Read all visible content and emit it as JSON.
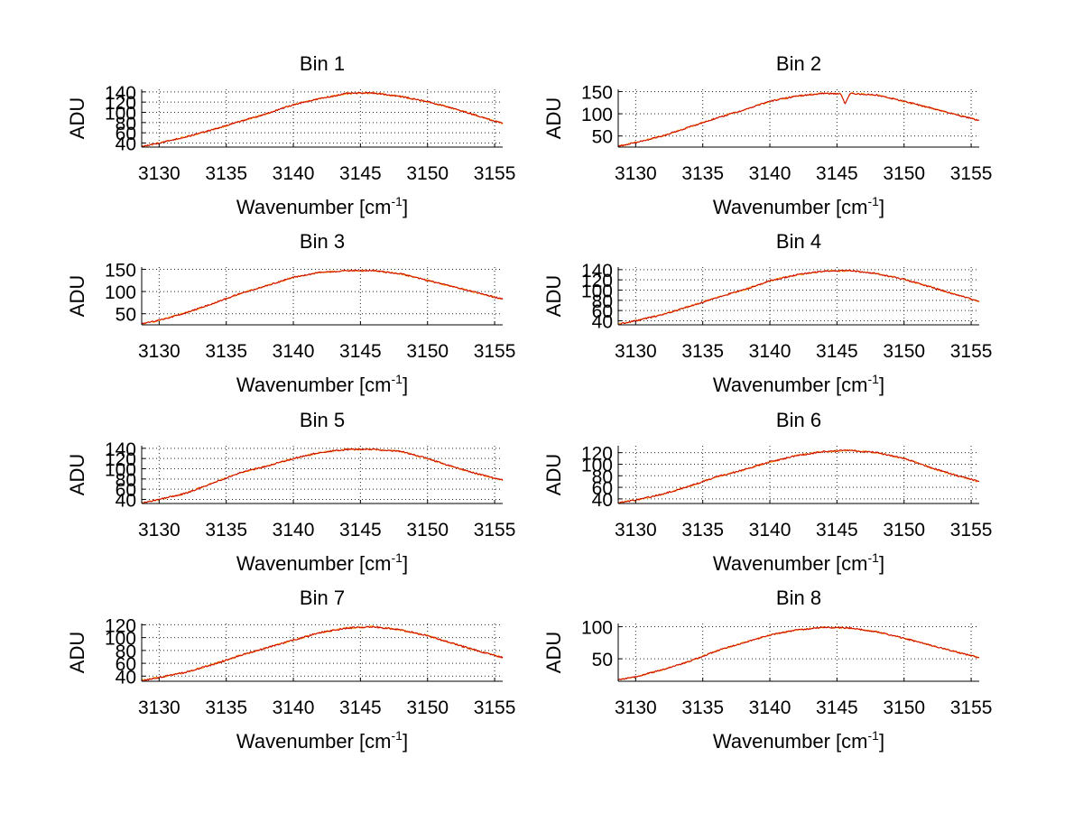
{
  "chart_data": [
    {
      "type": "line",
      "title": "Bin 1",
      "xlabel": "Wavenumber [cm",
      "xlabel_sup": "-1",
      "xlabel_suffix": "]",
      "ylabel": "ADU",
      "xlim": [
        3128.7,
        3155.6
      ],
      "ylim": [
        32,
        145
      ],
      "xticks": [
        3130,
        3135,
        3140,
        3145,
        3150,
        3155
      ],
      "yticks": [
        40,
        60,
        80,
        100,
        120,
        140
      ],
      "ytick_labels": [
        "40",
        "60",
        "80",
        "100",
        "120",
        "140"
      ],
      "noise": 1.6,
      "series": [
        {
          "color": "#ff9900",
          "x": [
            3128.7,
            3130,
            3132,
            3134,
            3136,
            3138,
            3140,
            3142,
            3144,
            3146,
            3148,
            3150,
            3152,
            3154,
            3155.6
          ],
          "y": [
            33,
            40,
            52,
            66,
            82,
            97,
            115,
            127,
            137,
            138,
            131,
            121,
            107,
            91,
            78
          ]
        },
        {
          "color": "#cc0000",
          "x": [
            3128.7,
            3130,
            3132,
            3134,
            3136,
            3138,
            3140,
            3142,
            3144,
            3146,
            3148,
            3150,
            3152,
            3154,
            3155.6
          ],
          "y": [
            33,
            40,
            52,
            66,
            82,
            97,
            115,
            127,
            137,
            138,
            131,
            121,
            107,
            91,
            78
          ]
        }
      ]
    },
    {
      "type": "line",
      "title": "Bin 2",
      "xlabel": "Wavenumber [cm",
      "xlabel_sup": "-1",
      "xlabel_suffix": "]",
      "ylabel": "ADU",
      "xlim": [
        3128.7,
        3155.6
      ],
      "ylim": [
        25,
        155
      ],
      "xticks": [
        3130,
        3135,
        3140,
        3145,
        3150,
        3155
      ],
      "yticks": [
        50,
        100,
        150
      ],
      "ytick_labels": [
        "50",
        "100",
        "150"
      ],
      "noise": 1.8,
      "series": [
        {
          "color": "#ff9900",
          "x": [
            3128.7,
            3130,
            3132,
            3134,
            3136,
            3138,
            3140,
            3142,
            3144,
            3145.3,
            3145.6,
            3146,
            3148,
            3150,
            3152,
            3154,
            3155.6
          ],
          "y": [
            27,
            35,
            50,
            70,
            90,
            108,
            128,
            140,
            146,
            145,
            122,
            146,
            142,
            128,
            113,
            97,
            85
          ]
        },
        {
          "color": "#cc0000",
          "x": [
            3128.7,
            3130,
            3132,
            3134,
            3136,
            3138,
            3140,
            3142,
            3144,
            3145.3,
            3145.6,
            3146,
            3148,
            3150,
            3152,
            3154,
            3155.6
          ],
          "y": [
            27,
            35,
            50,
            70,
            90,
            108,
            128,
            140,
            146,
            145,
            122,
            146,
            142,
            128,
            113,
            97,
            85
          ]
        }
      ]
    },
    {
      "type": "line",
      "title": "Bin 3",
      "xlabel": "Wavenumber [cm",
      "xlabel_sup": "-1",
      "xlabel_suffix": "]",
      "ylabel": "ADU",
      "xlim": [
        3128.7,
        3155.6
      ],
      "ylim": [
        25,
        155
      ],
      "xticks": [
        3130,
        3135,
        3140,
        3145,
        3150,
        3155
      ],
      "yticks": [
        50,
        100,
        150
      ],
      "ytick_labels": [
        "50",
        "100",
        "150"
      ],
      "noise": 1.8,
      "series": [
        {
          "color": "#ff9900",
          "x": [
            3128.7,
            3130,
            3132,
            3134,
            3136,
            3138,
            3140,
            3142,
            3144,
            3146,
            3148,
            3150,
            3152,
            3154,
            3155.6
          ],
          "y": [
            27,
            35,
            52,
            73,
            95,
            113,
            132,
            143,
            147,
            147,
            140,
            125,
            110,
            95,
            83
          ]
        },
        {
          "color": "#cc0000",
          "x": [
            3128.7,
            3130,
            3132,
            3134,
            3136,
            3138,
            3140,
            3142,
            3144,
            3146,
            3148,
            3150,
            3152,
            3154,
            3155.6
          ],
          "y": [
            27,
            35,
            52,
            73,
            95,
            113,
            132,
            143,
            147,
            147,
            140,
            125,
            110,
            95,
            83
          ]
        }
      ]
    },
    {
      "type": "line",
      "title": "Bin 4",
      "xlabel": "Wavenumber [cm",
      "xlabel_sup": "-1",
      "xlabel_suffix": "]",
      "ylabel": "ADU",
      "xlim": [
        3128.7,
        3155.6
      ],
      "ylim": [
        32,
        145
      ],
      "xticks": [
        3130,
        3135,
        3140,
        3145,
        3150,
        3155
      ],
      "yticks": [
        40,
        60,
        80,
        100,
        120,
        140
      ],
      "ytick_labels": [
        "40",
        "60",
        "80",
        "100",
        "120",
        "140"
      ],
      "noise": 1.6,
      "series": [
        {
          "color": "#ff9900",
          "x": [
            3128.7,
            3130,
            3132,
            3134,
            3136,
            3138,
            3140,
            3142,
            3144,
            3146,
            3148,
            3150,
            3152,
            3154,
            3155.6
          ],
          "y": [
            33,
            40,
            52,
            68,
            85,
            100,
            118,
            130,
            137,
            138,
            132,
            121,
            106,
            90,
            78
          ]
        },
        {
          "color": "#cc0000",
          "x": [
            3128.7,
            3130,
            3132,
            3134,
            3136,
            3138,
            3140,
            3142,
            3144,
            3146,
            3148,
            3150,
            3152,
            3154,
            3155.6
          ],
          "y": [
            33,
            40,
            52,
            68,
            85,
            100,
            118,
            130,
            137,
            138,
            132,
            121,
            106,
            90,
            78
          ]
        }
      ]
    },
    {
      "type": "line",
      "title": "Bin 5",
      "xlabel": "Wavenumber [cm",
      "xlabel_sup": "-1",
      "xlabel_suffix": "]",
      "ylabel": "ADU",
      "xlim": [
        3128.7,
        3155.6
      ],
      "ylim": [
        32,
        145
      ],
      "xticks": [
        3130,
        3135,
        3140,
        3145,
        3150,
        3155
      ],
      "yticks": [
        40,
        60,
        80,
        100,
        120,
        140
      ],
      "ytick_labels": [
        "40",
        "60",
        "80",
        "100",
        "120",
        "140"
      ],
      "noise": 1.6,
      "series": [
        {
          "color": "#ff9900",
          "x": [
            3128.7,
            3130,
            3132,
            3134,
            3136,
            3138,
            3140,
            3142,
            3144,
            3146,
            3148,
            3150,
            3152,
            3154,
            3155.6
          ],
          "y": [
            33,
            40,
            52,
            72,
            92,
            105,
            120,
            132,
            138,
            138,
            134,
            120,
            103,
            88,
            78
          ]
        },
        {
          "color": "#cc0000",
          "x": [
            3128.7,
            3130,
            3132,
            3134,
            3136,
            3138,
            3140,
            3142,
            3144,
            3146,
            3148,
            3150,
            3152,
            3154,
            3155.6
          ],
          "y": [
            33,
            40,
            52,
            72,
            92,
            105,
            120,
            132,
            138,
            138,
            134,
            120,
            103,
            88,
            78
          ]
        }
      ]
    },
    {
      "type": "line",
      "title": "Bin 6",
      "xlabel": "Wavenumber [cm",
      "xlabel_sup": "-1",
      "xlabel_suffix": "]",
      "ylabel": "ADU",
      "xlim": [
        3128.7,
        3155.6
      ],
      "ylim": [
        32,
        132
      ],
      "xticks": [
        3130,
        3135,
        3140,
        3145,
        3150,
        3155
      ],
      "yticks": [
        40,
        60,
        80,
        100,
        120
      ],
      "ytick_labels": [
        "40",
        "60",
        "80",
        "100",
        "120"
      ],
      "noise": 1.5,
      "series": [
        {
          "color": "#ff9900",
          "x": [
            3128.7,
            3130,
            3132,
            3134,
            3136,
            3138,
            3140,
            3142,
            3144,
            3146,
            3148,
            3150,
            3152,
            3154,
            3155.6
          ],
          "y": [
            33,
            38,
            48,
            62,
            78,
            90,
            104,
            115,
            122,
            124,
            120,
            110,
            94,
            80,
            70
          ]
        },
        {
          "color": "#cc0000",
          "x": [
            3128.7,
            3130,
            3132,
            3134,
            3136,
            3138,
            3140,
            3142,
            3144,
            3146,
            3148,
            3150,
            3152,
            3154,
            3155.6
          ],
          "y": [
            33,
            38,
            48,
            62,
            78,
            90,
            104,
            115,
            122,
            124,
            120,
            110,
            94,
            80,
            70
          ]
        }
      ]
    },
    {
      "type": "line",
      "title": "Bin 7",
      "xlabel": "Wavenumber [cm",
      "xlabel_sup": "-1",
      "xlabel_suffix": "]",
      "ylabel": "ADU",
      "xlim": [
        3128.7,
        3155.6
      ],
      "ylim": [
        32,
        122
      ],
      "xticks": [
        3130,
        3135,
        3140,
        3145,
        3150,
        3155
      ],
      "yticks": [
        40,
        60,
        80,
        100,
        120
      ],
      "ytick_labels": [
        "40",
        "60",
        "80",
        "100",
        "120"
      ],
      "noise": 1.4,
      "series": [
        {
          "color": "#ff9900",
          "x": [
            3128.7,
            3130,
            3132,
            3134,
            3136,
            3138,
            3140,
            3142,
            3144,
            3146,
            3148,
            3150,
            3152,
            3154,
            3155.6
          ],
          "y": [
            33,
            38,
            46,
            58,
            72,
            84,
            96,
            108,
            115,
            117,
            112,
            103,
            90,
            78,
            69
          ]
        },
        {
          "color": "#cc0000",
          "x": [
            3128.7,
            3130,
            3132,
            3134,
            3136,
            3138,
            3140,
            3142,
            3144,
            3146,
            3148,
            3150,
            3152,
            3154,
            3155.6
          ],
          "y": [
            33,
            38,
            46,
            58,
            72,
            84,
            96,
            108,
            115,
            117,
            112,
            103,
            90,
            78,
            69
          ]
        }
      ]
    },
    {
      "type": "line",
      "title": "Bin 8",
      "xlabel": "Wavenumber [cm",
      "xlabel_sup": "-1",
      "xlabel_suffix": "]",
      "ylabel": "ADU",
      "xlim": [
        3128.7,
        3155.6
      ],
      "ylim": [
        15,
        105
      ],
      "xticks": [
        3130,
        3135,
        3140,
        3145,
        3150,
        3155
      ],
      "yticks": [
        50,
        100
      ],
      "ytick_labels": [
        "50",
        "100"
      ],
      "noise": 1.2,
      "series": [
        {
          "color": "#ff9900",
          "x": [
            3128.7,
            3130,
            3132,
            3134,
            3136,
            3138,
            3140,
            3142,
            3144,
            3146,
            3148,
            3150,
            3152,
            3154,
            3155.6
          ],
          "y": [
            17,
            22,
            33,
            46,
            62,
            75,
            87,
            95,
            99,
            98,
            92,
            82,
            71,
            60,
            52
          ]
        },
        {
          "color": "#cc0000",
          "x": [
            3128.7,
            3130,
            3132,
            3134,
            3136,
            3138,
            3140,
            3142,
            3144,
            3146,
            3148,
            3150,
            3152,
            3154,
            3155.6
          ],
          "y": [
            17,
            22,
            33,
            46,
            62,
            75,
            87,
            95,
            99,
            98,
            92,
            82,
            71,
            60,
            52
          ]
        }
      ]
    }
  ]
}
